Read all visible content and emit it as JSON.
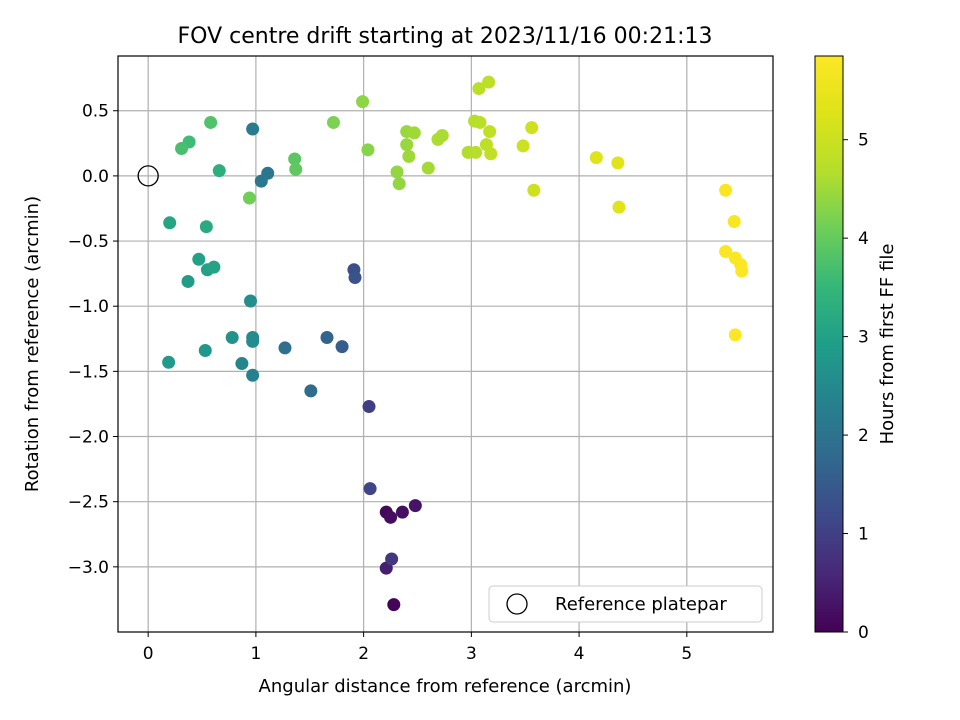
{
  "chart_data": {
    "type": "scatter",
    "title": "FOV centre drift starting at 2023/11/16 00:21:13",
    "xlabel": "Angular distance from reference (arcmin)",
    "ylabel": "Rotation from reference (arcmin)",
    "xlim": [
      -0.28,
      5.8
    ],
    "ylim": [
      -3.5,
      0.92
    ],
    "xticks": [
      0,
      1,
      2,
      3,
      4,
      5
    ],
    "xtick_labels": [
      "0",
      "1",
      "2",
      "3",
      "4",
      "5"
    ],
    "yticks": [
      -3.0,
      -2.5,
      -2.0,
      -1.5,
      -1.0,
      -0.5,
      0.0,
      0.5
    ],
    "ytick_labels": [
      "−3.0",
      "−2.5",
      "−2.0",
      "−1.5",
      "−1.0",
      "−0.5",
      "0.0",
      "0.5"
    ],
    "grid": true,
    "colormap": "viridis",
    "colorbar": {
      "label": "Hours from first FF file",
      "range": [
        0,
        5.85
      ],
      "ticks": [
        0,
        1,
        2,
        3,
        4,
        5
      ],
      "tick_labels": [
        "0",
        "1",
        "2",
        "3",
        "4",
        "5"
      ]
    },
    "reference": {
      "name": "Reference platepar",
      "x": 0,
      "y": 0
    },
    "legend_position": "lower-right",
    "points": [
      {
        "x": 2.28,
        "y": -3.29,
        "c": 0.05
      },
      {
        "x": 2.21,
        "y": -2.58,
        "c": 0.12
      },
      {
        "x": 2.25,
        "y": -2.62,
        "c": 0.18
      },
      {
        "x": 2.36,
        "y": -2.58,
        "c": 0.22
      },
      {
        "x": 2.48,
        "y": -2.53,
        "c": 0.28
      },
      {
        "x": 2.21,
        "y": -3.01,
        "c": 0.45
      },
      {
        "x": 2.26,
        "y": -2.94,
        "c": 0.85
      },
      {
        "x": 2.05,
        "y": -1.77,
        "c": 1.0
      },
      {
        "x": 2.06,
        "y": -2.4,
        "c": 1.1
      },
      {
        "x": 1.91,
        "y": -0.72,
        "c": 1.3
      },
      {
        "x": 1.92,
        "y": -0.78,
        "c": 1.35
      },
      {
        "x": 1.8,
        "y": -1.31,
        "c": 1.55
      },
      {
        "x": 1.66,
        "y": -1.24,
        "c": 1.7
      },
      {
        "x": 1.51,
        "y": -1.65,
        "c": 1.85
      },
      {
        "x": 1.27,
        "y": -1.32,
        "c": 1.95
      },
      {
        "x": 1.11,
        "y": 0.02,
        "c": 2.05
      },
      {
        "x": 1.05,
        "y": -0.04,
        "c": 2.1
      },
      {
        "x": 0.97,
        "y": 0.36,
        "c": 2.2
      },
      {
        "x": 0.97,
        "y": -1.53,
        "c": 2.3
      },
      {
        "x": 0.87,
        "y": -1.44,
        "c": 2.4
      },
      {
        "x": 0.97,
        "y": -1.24,
        "c": 2.5
      },
      {
        "x": 0.97,
        "y": -1.27,
        "c": 2.55
      },
      {
        "x": 0.95,
        "y": -0.96,
        "c": 2.6
      },
      {
        "x": 0.78,
        "y": -1.24,
        "c": 2.7
      },
      {
        "x": 0.53,
        "y": -1.34,
        "c": 2.8
      },
      {
        "x": 0.19,
        "y": -1.43,
        "c": 2.85
      },
      {
        "x": 0.37,
        "y": -0.81,
        "c": 2.9
      },
      {
        "x": 0.55,
        "y": -0.72,
        "c": 3.0
      },
      {
        "x": 0.61,
        "y": -0.7,
        "c": 3.05
      },
      {
        "x": 0.47,
        "y": -0.64,
        "c": 3.0
      },
      {
        "x": 0.2,
        "y": -0.36,
        "c": 3.1
      },
      {
        "x": 0.54,
        "y": -0.39,
        "c": 3.2
      },
      {
        "x": 0.66,
        "y": 0.04,
        "c": 3.3
      },
      {
        "x": 0.38,
        "y": 0.26,
        "c": 3.6
      },
      {
        "x": 0.31,
        "y": 0.21,
        "c": 3.7
      },
      {
        "x": 0.58,
        "y": 0.41,
        "c": 3.8
      },
      {
        "x": 1.36,
        "y": 0.13,
        "c": 3.9
      },
      {
        "x": 1.37,
        "y": 0.05,
        "c": 3.95
      },
      {
        "x": 0.94,
        "y": -0.17,
        "c": 4.1
      },
      {
        "x": 1.72,
        "y": 0.41,
        "c": 4.2
      },
      {
        "x": 2.04,
        "y": 0.2,
        "c": 4.3
      },
      {
        "x": 1.99,
        "y": 0.57,
        "c": 4.35
      },
      {
        "x": 2.31,
        "y": 0.03,
        "c": 4.4
      },
      {
        "x": 2.33,
        "y": -0.06,
        "c": 4.4
      },
      {
        "x": 2.4,
        "y": 0.34,
        "c": 4.45
      },
      {
        "x": 2.4,
        "y": 0.24,
        "c": 4.45
      },
      {
        "x": 2.42,
        "y": 0.15,
        "c": 4.5
      },
      {
        "x": 2.47,
        "y": 0.33,
        "c": 4.5
      },
      {
        "x": 2.6,
        "y": 0.06,
        "c": 4.55
      },
      {
        "x": 2.69,
        "y": 0.28,
        "c": 4.6
      },
      {
        "x": 2.73,
        "y": 0.31,
        "c": 4.6
      },
      {
        "x": 2.97,
        "y": 0.18,
        "c": 4.65
      },
      {
        "x": 3.03,
        "y": 0.42,
        "c": 4.7
      },
      {
        "x": 3.04,
        "y": 0.18,
        "c": 4.7
      },
      {
        "x": 3.08,
        "y": 0.41,
        "c": 4.75
      },
      {
        "x": 3.07,
        "y": 0.67,
        "c": 4.75
      },
      {
        "x": 3.16,
        "y": 0.72,
        "c": 4.8
      },
      {
        "x": 3.14,
        "y": 0.24,
        "c": 4.8
      },
      {
        "x": 3.17,
        "y": 0.34,
        "c": 4.85
      },
      {
        "x": 3.18,
        "y": 0.17,
        "c": 4.85
      },
      {
        "x": 3.48,
        "y": 0.23,
        "c": 5.0
      },
      {
        "x": 3.56,
        "y": 0.37,
        "c": 5.05
      },
      {
        "x": 3.58,
        "y": -0.11,
        "c": 5.05
      },
      {
        "x": 4.16,
        "y": 0.14,
        "c": 5.3
      },
      {
        "x": 4.36,
        "y": 0.1,
        "c": 5.35
      },
      {
        "x": 4.37,
        "y": -0.24,
        "c": 5.35
      },
      {
        "x": 5.36,
        "y": -0.11,
        "c": 5.75
      },
      {
        "x": 5.44,
        "y": -0.35,
        "c": 5.75
      },
      {
        "x": 5.36,
        "y": -0.58,
        "c": 5.8
      },
      {
        "x": 5.45,
        "y": -0.63,
        "c": 5.8
      },
      {
        "x": 5.5,
        "y": -0.68,
        "c": 5.8
      },
      {
        "x": 5.51,
        "y": -0.73,
        "c": 5.85
      },
      {
        "x": 5.45,
        "y": -1.22,
        "c": 5.85
      }
    ]
  }
}
